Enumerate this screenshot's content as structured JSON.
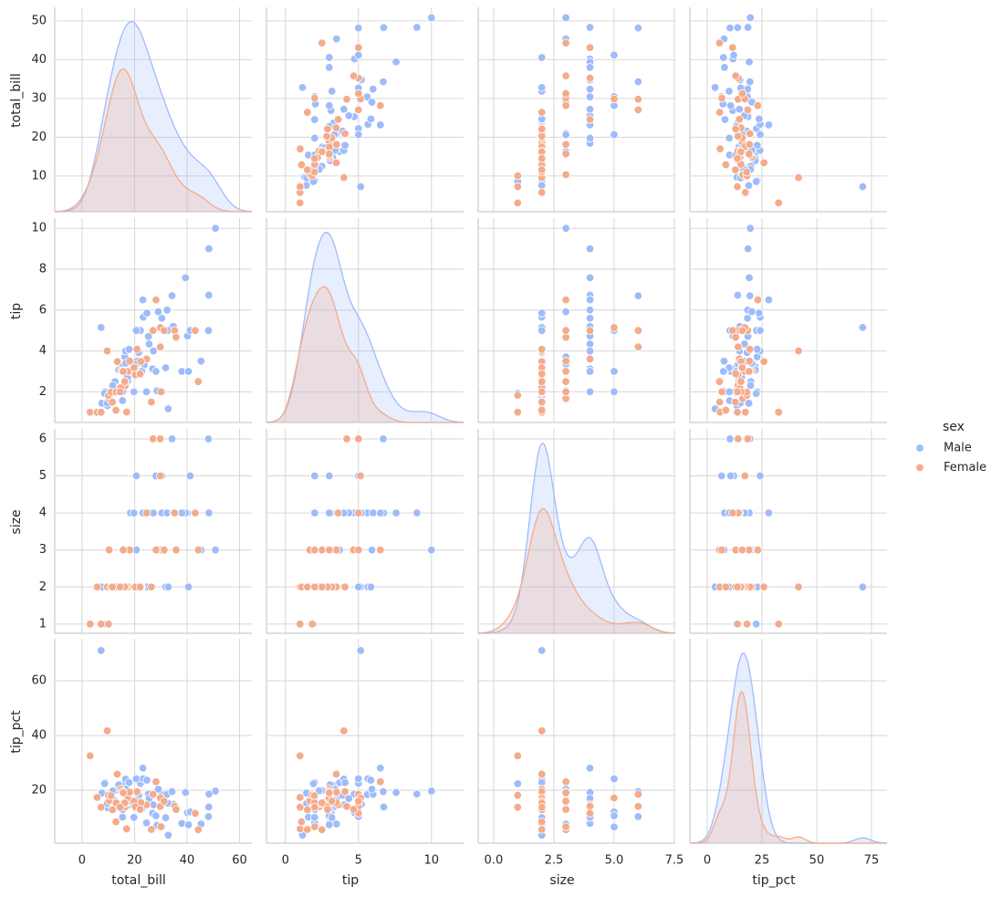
{
  "chart_data": {
    "type": "pairplot",
    "variables": [
      "total_bill",
      "tip",
      "size",
      "tip_pct"
    ],
    "axes": [
      {
        "xlim": [
          -10.4,
          64.7
        ],
        "xticks": [
          0,
          20,
          40,
          60
        ],
        "ylim": [
          0.8,
          53.5
        ],
        "yticks": [
          10,
          20,
          30,
          40,
          50
        ]
      },
      {
        "xlim": [
          -1.3,
          12.2
        ],
        "xticks": [
          0,
          5,
          10
        ],
        "ylim": [
          0.5,
          10.5
        ],
        "yticks": [
          2,
          4,
          6,
          8,
          10
        ]
      },
      {
        "xlim": [
          -0.64,
          7.54
        ],
        "xticks": [
          {
            "value": 0,
            "label": "0.0"
          },
          {
            "value": 2.5,
            "label": "2.5"
          },
          {
            "value": 5,
            "label": "5.0"
          },
          {
            "value": 7.5,
            "label": "7.5"
          }
        ],
        "ylim": [
          0.75,
          6.27
        ],
        "yticks": [
          1,
          2,
          3,
          4,
          5,
          6
        ]
      },
      {
        "xlim": [
          -7.9,
          82.1
        ],
        "xticks": [
          0,
          25,
          50,
          75
        ],
        "ylim": [
          0.7,
          75.3
        ],
        "yticks": [
          20,
          40,
          60
        ]
      }
    ],
    "grid": true,
    "legend": "right",
    "legend_title": "sex",
    "series": [
      {
        "name": "Male",
        "color": "#9ebcfa",
        "values": [
          [
            10.34,
            1.66,
            3,
            16.1
          ],
          [
            21.01,
            3.5,
            3,
            16.7
          ],
          [
            23.68,
            3.31,
            2,
            14.0
          ],
          [
            25.29,
            4.71,
            4,
            18.6
          ],
          [
            8.77,
            2.0,
            2,
            22.8
          ],
          [
            26.88,
            3.12,
            4,
            11.6
          ],
          [
            15.04,
            1.96,
            2,
            13.0
          ],
          [
            14.78,
            3.23,
            2,
            21.9
          ],
          [
            10.27,
            1.71,
            2,
            16.6
          ],
          [
            15.42,
            1.57,
            2,
            10.2
          ],
          [
            18.43,
            3.0,
            4,
            16.3
          ],
          [
            21.58,
            3.92,
            2,
            18.2
          ],
          [
            16.29,
            3.71,
            3,
            22.8
          ],
          [
            17.46,
            2.54,
            2,
            14.5
          ],
          [
            13.94,
            3.06,
            2,
            22.0
          ],
          [
            9.68,
            1.32,
            2,
            13.6
          ],
          [
            30.4,
            5.6,
            4,
            18.4
          ],
          [
            18.29,
            3.0,
            2,
            16.4
          ],
          [
            22.23,
            5.0,
            2,
            22.5
          ],
          [
            32.4,
            6.0,
            4,
            18.5
          ],
          [
            28.55,
            2.05,
            3,
            7.2
          ],
          [
            18.04,
            3.0,
            2,
            16.6
          ],
          [
            12.54,
            2.5,
            2,
            19.9
          ],
          [
            34.81,
            5.2,
            4,
            14.9
          ],
          [
            7.25,
            5.15,
            2,
            71.0
          ],
          [
            48.27,
            6.73,
            4,
            13.9
          ],
          [
            40.17,
            4.73,
            4,
            11.8
          ],
          [
            50.81,
            10.0,
            3,
            19.7
          ],
          [
            48.33,
            9.0,
            4,
            18.6
          ],
          [
            39.42,
            7.58,
            4,
            19.2
          ],
          [
            7.56,
            1.44,
            2,
            19.0
          ],
          [
            48.17,
            5.0,
            6,
            10.4
          ],
          [
            34.3,
            6.7,
            6,
            19.5
          ],
          [
            41.19,
            5.0,
            5,
            12.1
          ],
          [
            20.69,
            5.0,
            5,
            24.2
          ],
          [
            30.46,
            2.0,
            5,
            6.6
          ],
          [
            28.15,
            3.0,
            5,
            10.7
          ],
          [
            24.55,
            2.0,
            4,
            8.1
          ],
          [
            20.29,
            3.21,
            2,
            15.8
          ],
          [
            16.58,
            4.0,
            2,
            24.1
          ],
          [
            38.01,
            3.0,
            4,
            7.9
          ],
          [
            32.68,
            5.0,
            2,
            15.3
          ],
          [
            23.33,
            5.65,
            2,
            24.2
          ],
          [
            29.03,
            5.92,
            3,
            20.4
          ],
          [
            45.35,
            3.5,
            3,
            7.7
          ],
          [
            20.65,
            3.35,
            3,
            16.2
          ],
          [
            31.85,
            3.18,
            2,
            10.0
          ],
          [
            13.81,
            2.0,
            2,
            14.5
          ],
          [
            40.55,
            3.0,
            2,
            7.4
          ],
          [
            15.48,
            2.02,
            2,
            13.0
          ],
          [
            9.55,
            1.45,
            2,
            15.2
          ],
          [
            24.71,
            5.85,
            2,
            23.7
          ],
          [
            11.69,
            2.31,
            2,
            19.8
          ],
          [
            23.17,
            6.5,
            4,
            28.1
          ],
          [
            25.56,
            4.34,
            4,
            17.0
          ],
          [
            17.92,
            4.08,
            2,
            22.8
          ],
          [
            27.2,
            4.0,
            4,
            14.7
          ],
          [
            8.58,
            1.92,
            1,
            22.4
          ],
          [
            32.83,
            1.17,
            2,
            3.6
          ],
          [
            19.77,
            2.0,
            4,
            10.1
          ],
          [
            12.02,
            1.97,
            2,
            16.4
          ],
          [
            22.76,
            3.0,
            2,
            13.2
          ],
          [
            17.29,
            2.71,
            2,
            15.7
          ],
          [
            19.44,
            3.0,
            2,
            15.4
          ],
          [
            16.66,
            3.4,
            2,
            20.4
          ]
        ]
      },
      {
        "name": "Female",
        "color": "#f4ab8c",
        "values": [
          [
            16.99,
            1.01,
            2,
            5.9
          ],
          [
            24.59,
            3.61,
            4,
            14.7
          ],
          [
            35.26,
            5.0,
            4,
            14.2
          ],
          [
            14.83,
            3.02,
            2,
            20.4
          ],
          [
            10.33,
            1.67,
            3,
            16.2
          ],
          [
            3.07,
            1.0,
            1,
            32.6
          ],
          [
            5.75,
            1.0,
            2,
            17.4
          ],
          [
            7.25,
            1.0,
            1,
            13.8
          ],
          [
            10.07,
            1.83,
            1,
            18.2
          ],
          [
            44.3,
            2.5,
            3,
            5.6
          ],
          [
            26.41,
            1.5,
            2,
            5.7
          ],
          [
            27.05,
            5.0,
            6,
            18.5
          ],
          [
            29.8,
            4.2,
            6,
            14.1
          ],
          [
            43.11,
            5.0,
            4,
            11.6
          ],
          [
            9.6,
            4.0,
            2,
            41.7
          ],
          [
            16.43,
            2.3,
            2,
            14.0
          ],
          [
            18.78,
            3.0,
            2,
            16.0
          ],
          [
            15.38,
            3.0,
            2,
            19.5
          ],
          [
            22.42,
            3.48,
            2,
            15.5
          ],
          [
            11.02,
            1.98,
            2,
            18.0
          ],
          [
            13.42,
            3.48,
            2,
            25.9
          ],
          [
            20.92,
            4.08,
            2,
            19.5
          ],
          [
            30.06,
            2.0,
            3,
            6.7
          ],
          [
            35.83,
            4.67,
            3,
            13.0
          ],
          [
            14.73,
            2.2,
            2,
            14.9
          ],
          [
            17.51,
            3.0,
            2,
            17.1
          ],
          [
            29.85,
            5.14,
            5,
            17.2
          ],
          [
            19.82,
            3.18,
            2,
            16.0
          ],
          [
            13.0,
            2.0,
            2,
            15.4
          ],
          [
            16.4,
            2.5,
            2,
            15.2
          ],
          [
            20.27,
            2.83,
            2,
            14.0
          ],
          [
            22.12,
            2.88,
            2,
            13.0
          ],
          [
            12.9,
            1.1,
            2,
            8.5
          ],
          [
            18.15,
            3.5,
            3,
            19.3
          ],
          [
            28.17,
            6.5,
            3,
            23.1
          ],
          [
            15.69,
            3.0,
            3,
            19.1
          ],
          [
            31.27,
            5.0,
            3,
            16.0
          ],
          [
            16.27,
            2.5,
            2,
            15.4
          ],
          [
            11.59,
            1.5,
            2,
            12.9
          ],
          [
            14.52,
            2.0,
            2,
            13.8
          ]
        ]
      }
    ]
  }
}
